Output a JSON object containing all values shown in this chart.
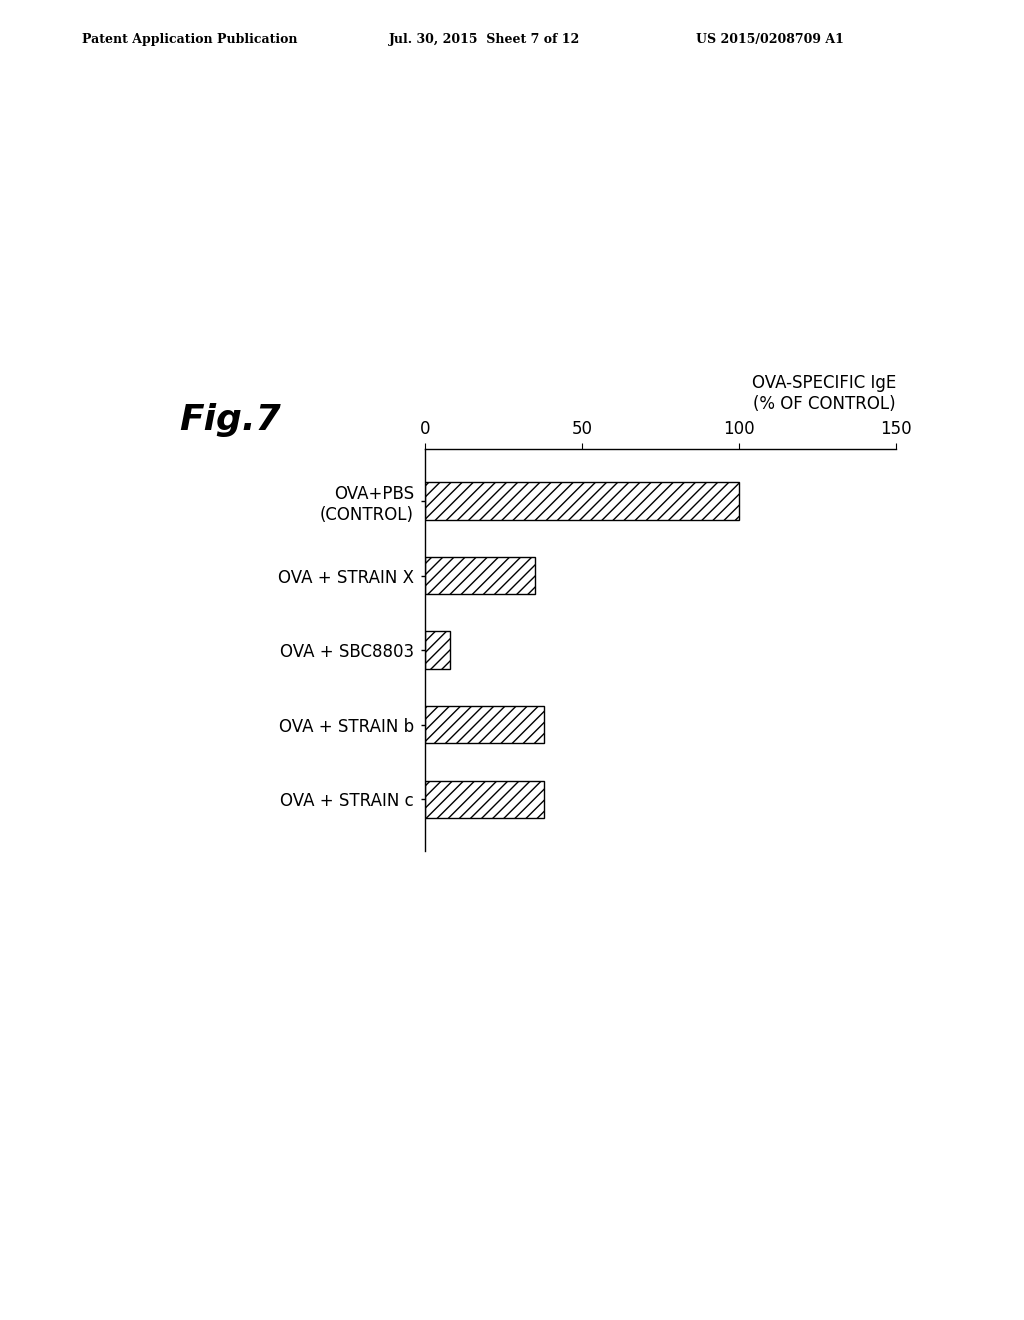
{
  "fig_label": "Fig.7",
  "xlabel_line1": "OVA-SPECIFIC IgE",
  "xlabel_line2": "(% OF CONTROL)",
  "categories": [
    "OVA+PBS\n(CONTROL)",
    "OVA + STRAIN X",
    "OVA + SBC8803",
    "OVA + STRAIN b",
    "OVA + STRAIN c"
  ],
  "values": [
    100,
    35,
    8,
    38,
    38
  ],
  "xlim": [
    0,
    150
  ],
  "xticks": [
    0,
    50,
    100,
    150
  ],
  "bar_color": "white",
  "bar_edgecolor": "black",
  "hatch": "///",
  "background_color": "white",
  "header_text": "Patent Application Publication",
  "header_date": "Jul. 30, 2015  Sheet 7 of 12",
  "header_patent": "US 2015/0208709 A1",
  "bar_height": 0.5,
  "fig_label_fontsize": 26,
  "tick_fontsize": 12,
  "label_fontsize": 12,
  "xlabel_fontsize": 12,
  "header_fontsize": 9
}
